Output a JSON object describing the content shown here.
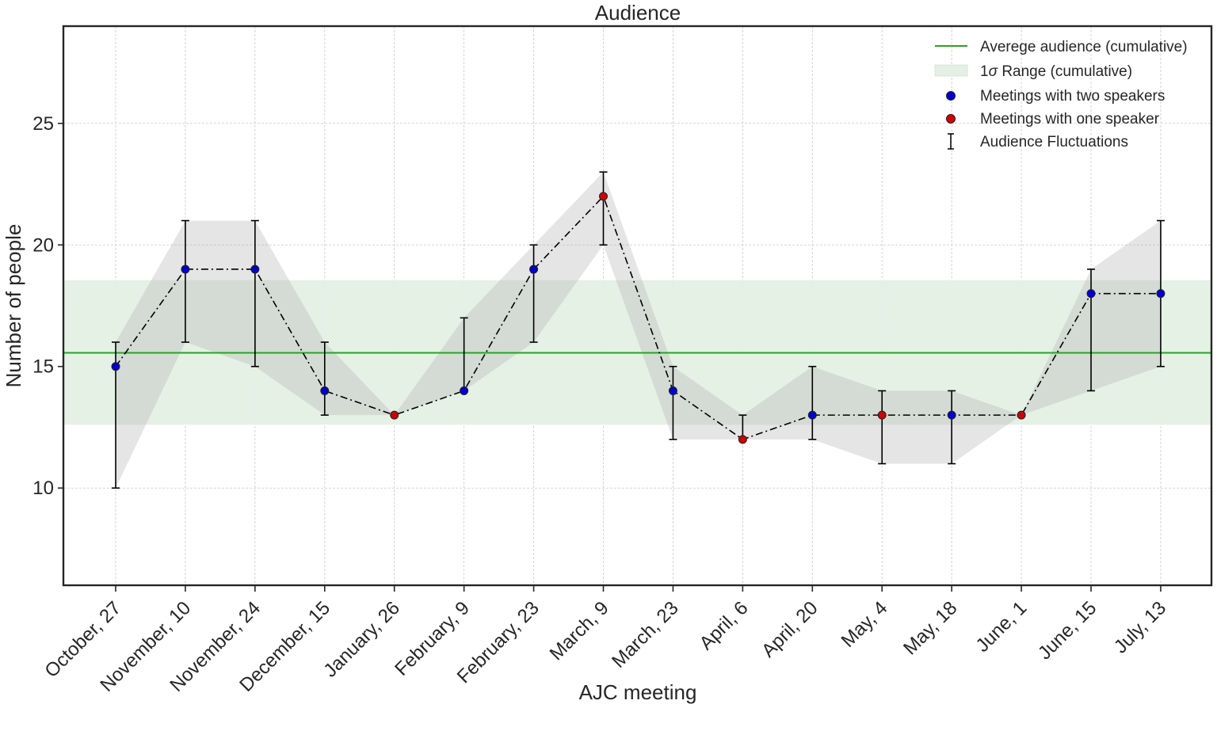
{
  "chart_data": {
    "type": "line",
    "title": "Audience",
    "xlabel": "AJC meeting",
    "ylabel": "Number of people",
    "ylim": [
      6,
      29
    ],
    "yticks": [
      10,
      15,
      20,
      25
    ],
    "grid": true,
    "legend_position": "top-right",
    "categories": [
      "October, 27",
      "November, 10",
      "November, 24",
      "December, 15",
      "January, 26",
      "February, 9",
      "February, 23",
      "March, 9",
      "March, 23",
      "April, 6",
      "April, 20",
      "May, 4",
      "May, 18",
      "June, 1",
      "June, 15",
      "July, 13"
    ],
    "audience": [
      15,
      19,
      19,
      14,
      13,
      14,
      19,
      22,
      14,
      12,
      13,
      13,
      13,
      13,
      18,
      18
    ],
    "speakers": [
      "two",
      "two",
      "two",
      "two",
      "one",
      "two",
      "two",
      "one",
      "two",
      "one",
      "two",
      "one",
      "two",
      "one",
      "two",
      "two"
    ],
    "fluctuation_low": [
      10,
      16,
      15,
      13,
      13,
      14,
      16,
      20,
      12,
      12,
      12,
      11,
      11,
      13,
      14,
      15
    ],
    "fluctuation_high": [
      16,
      21,
      21,
      16,
      13,
      17,
      20,
      23,
      15,
      13,
      15,
      14,
      14,
      13,
      19,
      21
    ],
    "cumulative_mean": 15.56,
    "cumulative_sigma_range": [
      12.6,
      18.55
    ],
    "legend": {
      "mean": "Averege audience (cumulative)",
      "sigma_prefix": "1",
      "sigma_symbol": "σ",
      "sigma_suffix": " Range (cumulative)",
      "two_speakers": "Meetings with two speakers",
      "one_speaker": "Meetings with one speaker",
      "errorbars": "Audience Fluctuations"
    },
    "colors": {
      "mean_line": "#2ca02c",
      "sigma_band": "#e5f0e5",
      "fluctuation_band": "#b0b0b0",
      "two_speakers": "#0000cc",
      "one_speaker": "#cc0000",
      "line": "#000000"
    }
  }
}
